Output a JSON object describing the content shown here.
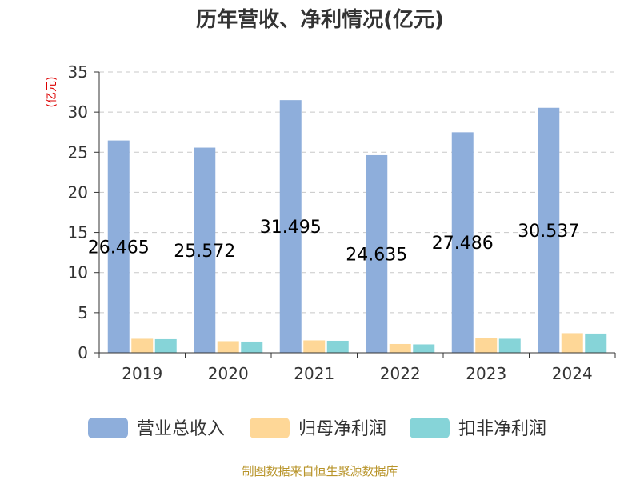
{
  "chart_data": {
    "type": "bar",
    "title": "历年营收、净利情况(亿元)",
    "unit_label": "(亿元)",
    "categories": [
      "2019",
      "2020",
      "2021",
      "2022",
      "2023",
      "2024"
    ],
    "ylim": [
      0,
      35
    ],
    "yticks": [
      0,
      5,
      10,
      15,
      20,
      25,
      30,
      35
    ],
    "grid": "horizontal-dashed",
    "legend_position": "bottom",
    "series": [
      {
        "name": "营业总收入",
        "color": "#8eaedb",
        "values": [
          26.465,
          25.572,
          31.495,
          24.635,
          27.486,
          30.537
        ],
        "labels": [
          "26.465",
          "25.572",
          "31.495",
          "24.635",
          "27.486",
          "30.537"
        ]
      },
      {
        "name": "归母净利润",
        "color": "#fed797",
        "values": [
          1.75,
          1.45,
          1.55,
          1.1,
          1.8,
          2.45
        ]
      },
      {
        "name": "扣非净利润",
        "color": "#86d4d8",
        "values": [
          1.7,
          1.4,
          1.5,
          1.05,
          1.75,
          2.4
        ]
      }
    ]
  },
  "footer": {
    "source": "制图数据来自恒生聚源数据库"
  }
}
